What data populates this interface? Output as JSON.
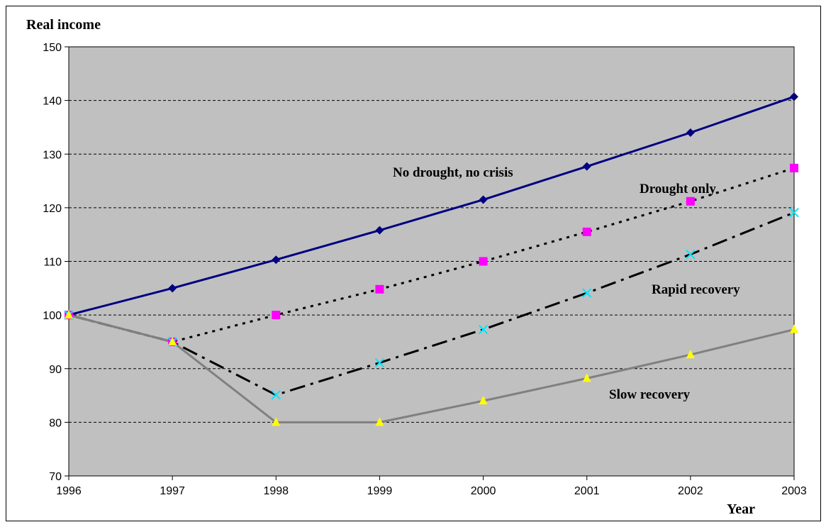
{
  "chart_data": {
    "type": "line",
    "ylabel": "Real income",
    "xlabel": "Year",
    "x": [
      1996,
      1997,
      1998,
      1999,
      2000,
      2001,
      2002,
      2003
    ],
    "ylim": [
      70,
      150
    ],
    "yticks": [
      70,
      80,
      90,
      100,
      110,
      120,
      130,
      140,
      150
    ],
    "grid": "horizontal dashed",
    "legend": "none (inline labels)",
    "series": [
      {
        "name": "No drought, no crisis",
        "values": [
          100,
          105,
          110.3,
          115.8,
          121.5,
          127.7,
          134,
          140.7
        ],
        "color": "#000080",
        "dash": "solid",
        "marker": "diamond",
        "marker_color": "#000080"
      },
      {
        "name": "Drought only",
        "values": [
          100,
          95,
          100,
          104.8,
          110,
          115.5,
          121.2,
          127.4
        ],
        "color": "#000000",
        "dash": "dotted",
        "marker": "square",
        "marker_color": "#ff00ff"
      },
      {
        "name": "Rapid recovery",
        "values": [
          100,
          95,
          85.1,
          91.1,
          97.3,
          104.1,
          111.3,
          119.1
        ],
        "color": "#000000",
        "dash": "dash-dot",
        "marker": "x",
        "marker_color": "#00e5ff"
      },
      {
        "name": "Slow recovery",
        "values": [
          100,
          95,
          80,
          80,
          84,
          88.2,
          92.6,
          97.3
        ],
        "color": "#808080",
        "dash": "solid",
        "marker": "triangle",
        "marker_color": "#ffff00"
      }
    ]
  }
}
